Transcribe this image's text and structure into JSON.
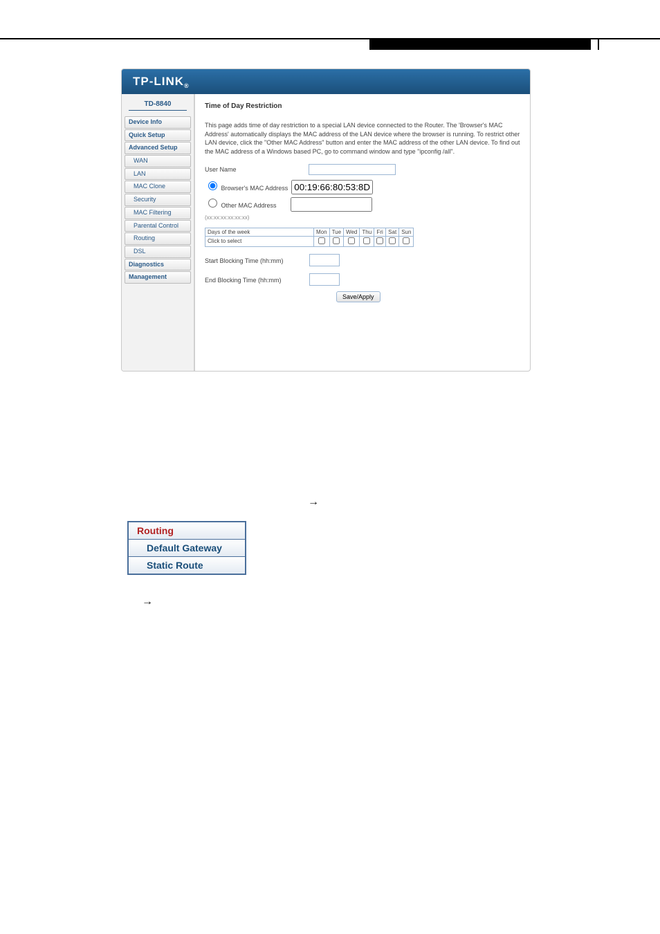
{
  "header": {
    "brand": "TP-LINK",
    "model": "TD-8840"
  },
  "nav": {
    "items": [
      {
        "label": "Device Info",
        "sub": false
      },
      {
        "label": "Quick Setup",
        "sub": false
      },
      {
        "label": "Advanced Setup",
        "sub": false
      },
      {
        "label": "WAN",
        "sub": true
      },
      {
        "label": "LAN",
        "sub": true
      },
      {
        "label": "MAC Clone",
        "sub": true
      },
      {
        "label": "Security",
        "sub": true
      },
      {
        "label": "MAC Filtering",
        "sub": true
      },
      {
        "label": "Parental Control",
        "sub": true
      },
      {
        "label": "Routing",
        "sub": true
      },
      {
        "label": "DSL",
        "sub": true
      },
      {
        "label": "Diagnostics",
        "sub": false
      },
      {
        "label": "Management",
        "sub": false
      }
    ]
  },
  "content": {
    "title": "Time of Day Restriction",
    "intro": "This page adds time of day restriction to a special LAN device connected to the Router. The 'Browser's MAC Address' automatically displays the MAC address of the LAN device where the browser is running. To restrict other LAN device, click the \"Other MAC Address\" button and enter the MAC address of the other LAN device. To find out the MAC address of a Windows based PC, go to command window and type \"ipconfig /all\".",
    "username_label": "User Name",
    "browser_mac_label": "Browser's MAC Address",
    "browser_mac_value": "00:19:66:80:53:8D",
    "other_mac_label": "Other MAC Address",
    "mac_hint": "(xx:xx:xx:xx:xx:xx)",
    "days_label": "Days of the week",
    "click_label": "Click to select",
    "days": [
      "Mon",
      "Tue",
      "Wed",
      "Thu",
      "Fri",
      "Sat",
      "Sun"
    ],
    "start_label": "Start Blocking Time (hh:mm)",
    "end_label": "End Blocking Time (hh:mm)",
    "save_button": "Save/Apply"
  },
  "routing_menu": {
    "title": "Routing",
    "items": [
      "Default Gateway",
      "Static Route"
    ]
  },
  "colors": {
    "header_grad_top": "#2b6fa7",
    "header_grad_bot": "#1b4f7a",
    "nav_text": "#2a5a88",
    "border": "#9cb7d4",
    "routing_border": "#4a6f9b",
    "routing_active": "#b22222"
  }
}
